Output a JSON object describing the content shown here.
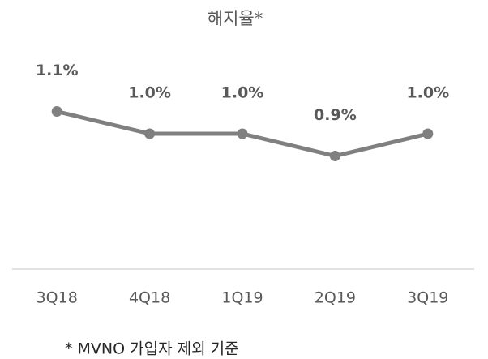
{
  "chart_data": {
    "type": "line",
    "title": "해지율*",
    "categories": [
      "3Q18",
      "4Q18",
      "1Q19",
      "2Q19",
      "3Q19"
    ],
    "series": [
      {
        "name": "해지율",
        "color": "#808080",
        "values": [
          1.1,
          1.0,
          1.0,
          0.9,
          1.0
        ],
        "value_labels": [
          "1.1%",
          "1.0%",
          "1.0%",
          "0.9%",
          "1.0%"
        ]
      }
    ],
    "ylim": [
      0.4,
      1.2
    ],
    "footnote": "* MVNO 가입자 제외 기준"
  }
}
